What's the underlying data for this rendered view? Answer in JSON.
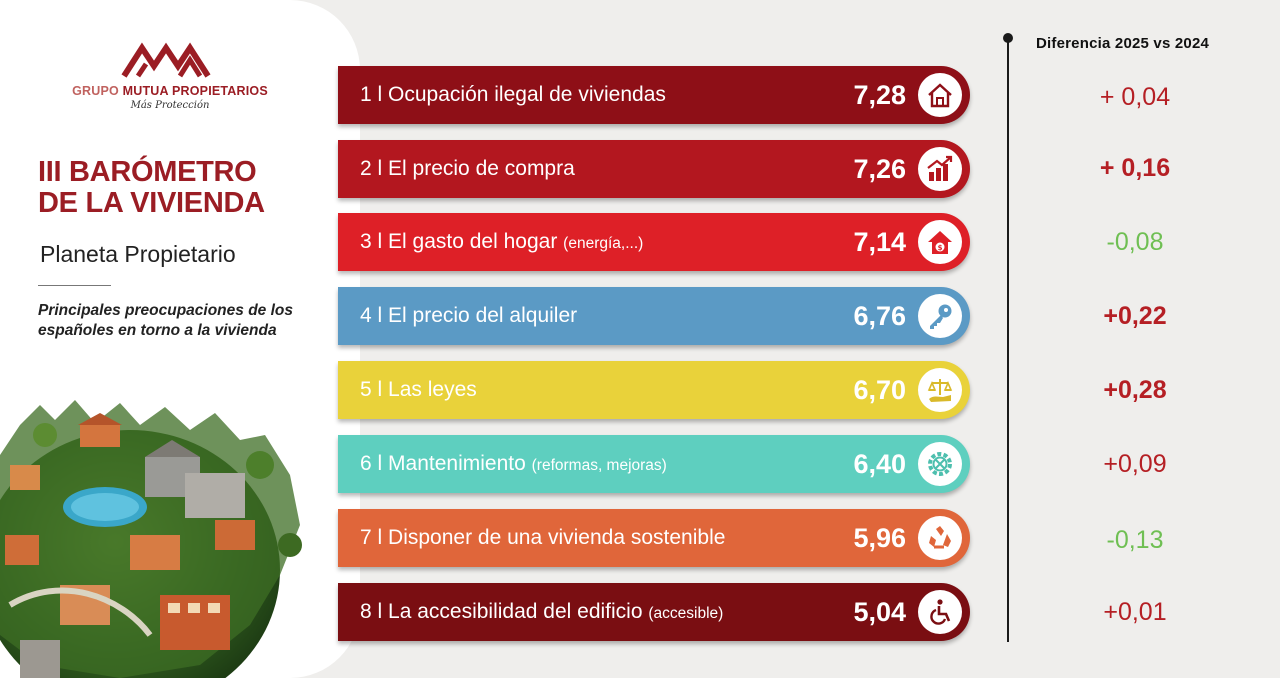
{
  "logo": {
    "brand_light": "GRUPO",
    "brand_bold": "MUTUA PROPIETARIOS",
    "tagline": "Más Protección"
  },
  "title_line1": "III BARÓMETRO",
  "title_line2": "DE LA VIVIENDA",
  "subtitle": "Planeta Propietario",
  "description": "Principales preocupaciones de los españoles en torno a la vivienda",
  "colors": {
    "brand": "#9b1d24",
    "positive_diff": "#b51f24",
    "negative_diff": "#6fbf53"
  },
  "chart_data": {
    "type": "bar",
    "orientation": "horizontal",
    "diff_header": "Diferencia 2025 vs 2024",
    "items": [
      {
        "rank": "1",
        "label": "Ocupación ilegal de viviendas",
        "note": "",
        "value": "7,28",
        "diff": "+ 0,04",
        "diff_sign": "pos",
        "diff_bold": false,
        "color": "#8e0f17",
        "icon": "house-icon"
      },
      {
        "rank": "2",
        "label": "El precio de compra",
        "note": "",
        "value": "7,26",
        "diff": "+ 0,16",
        "diff_sign": "pos",
        "diff_bold": true,
        "color": "#b3171f",
        "icon": "rising-price-icon"
      },
      {
        "rank": "3",
        "label": "El gasto del hogar",
        "note": "(energía,...)",
        "value": "7,14",
        "diff": "-0,08",
        "diff_sign": "neg",
        "diff_bold": false,
        "color": "#de2027",
        "icon": "house-money-icon"
      },
      {
        "rank": "4",
        "label": "El precio del alquiler",
        "note": "",
        "value": "6,76",
        "diff": "+0,22",
        "diff_sign": "pos",
        "diff_bold": true,
        "color": "#5b9ac5",
        "icon": "key-icon"
      },
      {
        "rank": "5",
        "label": "Las leyes",
        "note": "",
        "value": "6,70",
        "diff": "+0,28",
        "diff_sign": "pos",
        "diff_bold": true,
        "color": "#e9d23a",
        "icon": "scales-icon"
      },
      {
        "rank": "6",
        "label": "Mantenimiento",
        "note": "(reformas, mejoras)",
        "value": "6,40",
        "diff": "+0,09",
        "diff_sign": "pos",
        "diff_bold": false,
        "color": "#5ecfbf",
        "icon": "gear-tools-icon"
      },
      {
        "rank": "7",
        "label": "Disponer de una vivienda sostenible",
        "note": "",
        "value": "5,96",
        "diff": "-0,13",
        "diff_sign": "neg",
        "diff_bold": false,
        "color": "#e0663a",
        "icon": "recycle-icon"
      },
      {
        "rank": "8",
        "label": "La accesibilidad del edificio",
        "note": "(accesible)",
        "value": "5,04",
        "diff": "+0,01",
        "diff_sign": "pos",
        "diff_bold": false,
        "color": "#7a0e12",
        "icon": "wheelchair-icon"
      }
    ]
  }
}
